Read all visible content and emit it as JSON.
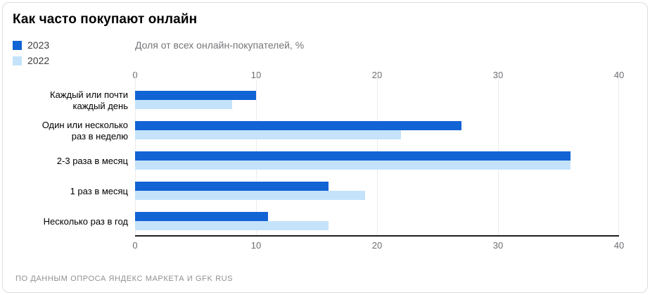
{
  "page": {
    "title": "Как часто покупают онлайн",
    "axis_units_label": "Доля от всех онлайн-покупателей, %",
    "source_note": "ПО ДАННЫМ ОПРОСА ЯНДЕКС МАРКЕТА И GFK RUS"
  },
  "colors": {
    "series_2023": "#1263d4",
    "series_2022": "#c4e3fa",
    "gridline": "#ececee",
    "axis_line": "#1f1f1f",
    "muted_text": "#6e6e73"
  },
  "chart_data": {
    "type": "bar",
    "orientation": "horizontal",
    "title": "Как часто покупают онлайн",
    "xlabel": "Доля от всех онлайн-покупателей, %",
    "ylabel": "",
    "xlim": [
      0,
      40
    ],
    "ticks": [
      0,
      10,
      20,
      30,
      40
    ],
    "grid": true,
    "legend_position": "top-left",
    "categories": [
      "Каждый или почти\nкаждый день",
      "Один или несколько\nраз в неделю",
      "2-3 раза в месяц",
      "1 раз в месяц",
      "Несколько раз в год"
    ],
    "series": [
      {
        "name": "2023",
        "color": "#1263d4",
        "values": [
          10,
          27,
          36,
          16,
          11
        ]
      },
      {
        "name": "2022",
        "color": "#c4e3fa",
        "values": [
          8,
          22,
          36,
          19,
          16
        ]
      }
    ],
    "source": "ПО ДАННЫМ ОПРОСА ЯНДЕКС МАРКЕТА И GFK RUS"
  }
}
